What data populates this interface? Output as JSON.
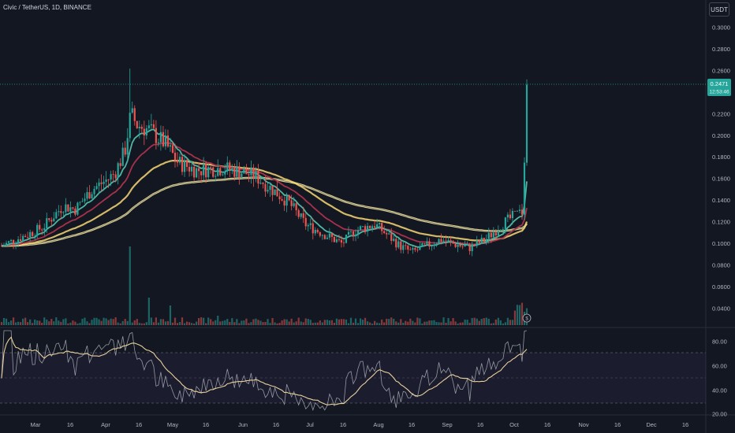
{
  "header": {
    "symbol": "Civic / TetherUS",
    "separator1": ", ",
    "interval": "1D",
    "separator2": ", ",
    "exchange": "BINANCE"
  },
  "unit_button": "USDT",
  "price_axis": {
    "ticks": [
      "0.3000",
      "0.2800",
      "0.2600",
      "0.2400",
      "0.2200",
      "0.2000",
      "0.1800",
      "0.1600",
      "0.1400",
      "0.1200",
      "0.1000",
      "0.0800",
      "0.0600",
      "0.0400"
    ]
  },
  "last_price": {
    "value": "0.2471",
    "countdown": "12:53:46"
  },
  "rsi_axis": {
    "ticks": [
      "80.00",
      "60.00",
      "40.00",
      "20.00"
    ]
  },
  "time_axis": {
    "labels": [
      "Mar",
      "16",
      "Apr",
      "16",
      "May",
      "16",
      "Jun",
      "16",
      "Jul",
      "16",
      "Aug",
      "16",
      "Sep",
      "16",
      "Oct",
      "16",
      "Nov",
      "16",
      "Dec",
      "16"
    ]
  },
  "colors": {
    "up": "#26a69a",
    "down": "#ef5350",
    "ema_fast": "#4fb6a4",
    "ema_mid": "#a5324a",
    "ema_slow_outer": "#f2e6a6",
    "ema_slow_inner": "#f7d774",
    "rsi_line": "#9598a1",
    "rsi_ma": "#e8d19b"
  }
}
